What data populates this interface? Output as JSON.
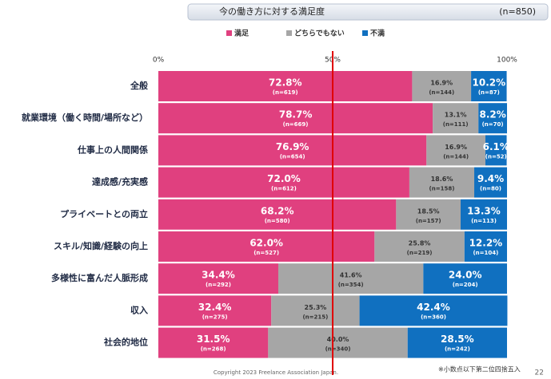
{
  "chart_data": {
    "type": "stacked-bar-horizontal",
    "title": "今の働き方に対する満足度",
    "subtitle": "(n=850)",
    "categories": [
      "全般",
      "就業環境（働く時間/場所など）",
      "仕事上の人間関係",
      "達成感/充実感",
      "プライベートとの両立",
      "スキル/知識/経験の向上",
      "多様性に富んだ人脈形成",
      "収入",
      "社会的地位"
    ],
    "series": [
      {
        "name": "満足",
        "color": "#e0407f",
        "values": [
          72.8,
          78.7,
          76.9,
          72.0,
          68.2,
          62.0,
          34.4,
          32.4,
          31.5
        ],
        "value_labels": [
          "72.8%",
          "78.7%",
          "76.9%",
          "72.0%",
          "68.2%",
          "62.0%",
          "34.4%",
          "32.4%",
          "31.5%"
        ],
        "n_labels": [
          "(n=619)",
          "(n=669)",
          "(n=654)",
          "(n=612)",
          "(n=580)",
          "(n=527)",
          "(n=292)",
          "(n=275)",
          "(n=268)"
        ]
      },
      {
        "name": "どちらでもない",
        "color": "#a6a6a6",
        "values": [
          16.9,
          13.1,
          16.9,
          18.6,
          18.5,
          25.8,
          41.6,
          25.3,
          40.0
        ],
        "value_labels": [
          "16.9%",
          "13.1%",
          "16.9%",
          "18.6%",
          "18.5%",
          "25.8%",
          "41.6%",
          "25.3%",
          "40.0%"
        ],
        "n_labels": [
          "(n=144)",
          "(n=111)",
          "(n=144)",
          "(n=158)",
          "(n=157)",
          "(n=219)",
          "(n=354)",
          "(n=215)",
          "(n=340)"
        ]
      },
      {
        "name": "不満",
        "color": "#1070c0",
        "values": [
          10.2,
          8.2,
          6.1,
          9.4,
          13.3,
          12.2,
          24.0,
          42.4,
          28.5
        ],
        "value_labels": [
          "10.2%",
          "8.2%",
          "6.1%",
          "9.4%",
          "13.3%",
          "12.2%",
          "24.0%",
          "42.4%",
          "28.5%"
        ],
        "n_labels": [
          "(n=87)",
          "(n=70)",
          "(n=52)",
          "(n=80)",
          "(n=113)",
          "(n=104)",
          "(n=204)",
          "(n=360)",
          "(n=242)"
        ]
      }
    ],
    "xlim": [
      0,
      100
    ],
    "xticks": [
      {
        "value": 0,
        "label": "0%"
      },
      {
        "value": 50,
        "label": "50%"
      },
      {
        "value": 100,
        "label": "100%"
      }
    ],
    "reference_line": {
      "value": 50,
      "color": "#e00000"
    },
    "grid": false,
    "footnote": "※小数点以下第二位四捨五入",
    "copyright": "Copyright 2023 Freelance Association Japan.",
    "page_number": "22"
  }
}
